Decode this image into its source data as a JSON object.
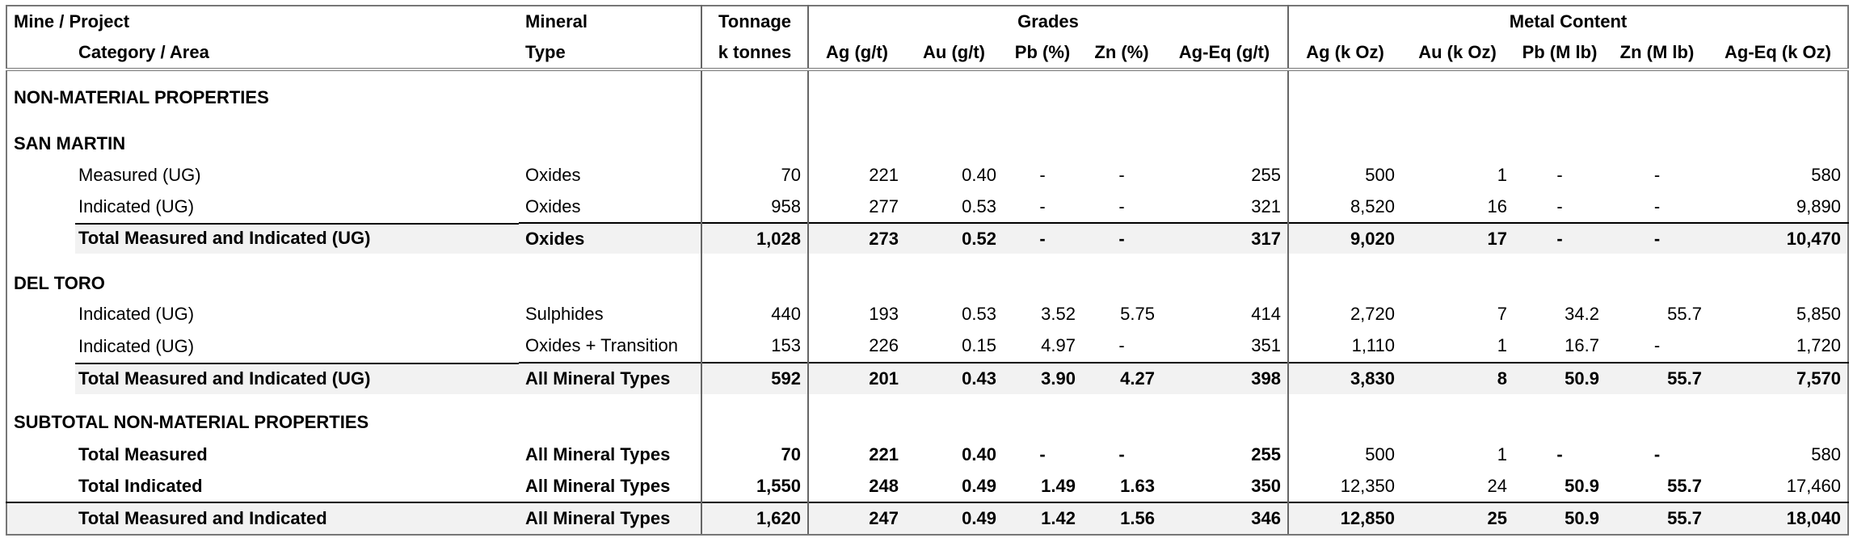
{
  "header": {
    "group_row": [
      "Mine / Project",
      "Mineral",
      "Tonnage",
      "Grades",
      "Metal Content"
    ],
    "column_row": [
      "Category / Area",
      "Type",
      "k tonnes",
      "Ag (g/t)",
      "Au (g/t)",
      "Pb (%)",
      "Zn (%)",
      "Ag-Eq (g/t)",
      "Ag (k Oz)",
      "Au (k Oz)",
      "Pb (M lb)",
      "Zn (M lb)",
      "Ag-Eq (k Oz)"
    ]
  },
  "table": {
    "title": "NON-MATERIAL PROPERTIES",
    "sections": [
      {
        "name": "SAN MARTIN",
        "rows": [
          [
            "Measured (UG)",
            "Oxides",
            "70",
            "221",
            "0.40",
            "-",
            "-",
            "255",
            "500",
            "1",
            "-",
            "-",
            "580"
          ],
          [
            "Indicated (UG)",
            "Oxides",
            "958",
            "277",
            "0.53",
            "-",
            "-",
            "321",
            "8,520",
            "16",
            "-",
            "-",
            "9,890"
          ]
        ],
        "total": [
          "Total Measured and Indicated (UG)",
          "Oxides",
          "1,028",
          "273",
          "0.52",
          "-",
          "-",
          "317",
          "9,020",
          "17",
          "-",
          "-",
          "10,470"
        ]
      },
      {
        "name": "DEL TORO",
        "rows": [
          [
            "Indicated (UG)",
            "Sulphides",
            "440",
            "193",
            "0.53",
            "3.52",
            "5.75",
            "414",
            "2,720",
            "7",
            "34.2",
            "55.7",
            "5,850"
          ],
          [
            "Indicated (UG)",
            "Oxides + Transition",
            "153",
            "226",
            "0.15",
            "4.97",
            "-",
            "351",
            "1,110",
            "1",
            "16.7",
            "-",
            "1,720"
          ]
        ],
        "total": [
          "Total Measured and Indicated (UG)",
          "All Mineral Types",
          "592",
          "201",
          "0.43",
          "3.90",
          "4.27",
          "398",
          "3,830",
          "8",
          "50.9",
          "55.7",
          "7,570"
        ]
      }
    ],
    "subtotal": {
      "name": "SUBTOTAL NON-MATERIAL PROPERTIES",
      "rows": [
        [
          "Total Measured",
          "All Mineral Types",
          "70",
          "221",
          "0.40",
          "-",
          "-",
          "255",
          "500",
          "1",
          "-",
          "-",
          "580"
        ],
        [
          "Total Indicated",
          "All Mineral Types",
          "1,550",
          "248",
          "0.49",
          "1.49",
          "1.63",
          "350",
          "12,350",
          "24",
          "50.9",
          "55.7",
          "17,460"
        ],
        [
          "Total Measured and Indicated",
          "All Mineral Types",
          "1,620",
          "247",
          "0.49",
          "1.42",
          "1.56",
          "346",
          "12,850",
          "25",
          "50.9",
          "55.7",
          "18,040"
        ]
      ]
    }
  }
}
